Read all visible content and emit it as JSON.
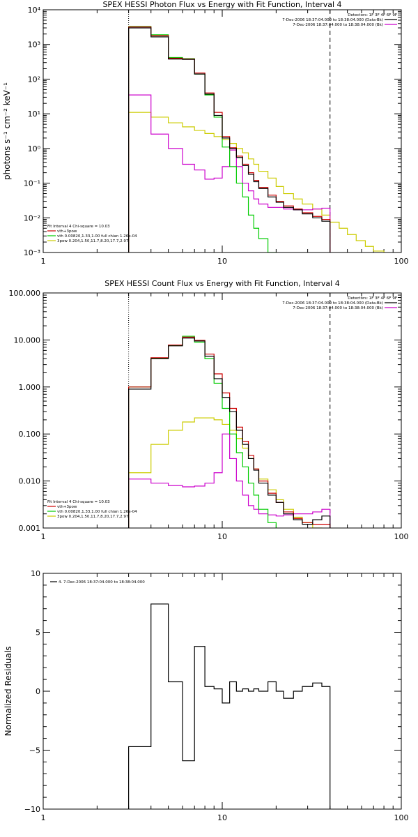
{
  "chart_data": [
    {
      "type": "line",
      "title": "SPEX HESSI Photon Flux vs Energy with Fit Function, Interval 4",
      "xlabel": "",
      "ylabel": "photons s⁻¹ cm⁻² keV⁻¹",
      "x_scale": "log",
      "y_scale": "log",
      "xlim": [
        1,
        100
      ],
      "ylim": [
        0.001,
        10000
      ],
      "x_tick_labels": [
        "1",
        "10",
        "100"
      ],
      "y_tick_labels": [
        "10⁻³",
        "10⁻²",
        "10⁻¹",
        "10⁰",
        "10¹",
        "10²",
        "10³",
        "10⁴"
      ],
      "x_ticks": [
        1,
        10,
        100
      ],
      "y_ticks": [
        0.001,
        0.01,
        0.1,
        1,
        10,
        100,
        1000,
        10000
      ],
      "vlines": [
        {
          "x": 3.0,
          "style": "dotted"
        },
        {
          "x": 40.0,
          "style": "dashed"
        }
      ],
      "legend_top_right": [
        "Detectors: 1F 3F 4F 6F 9F",
        "7-Dec-2006 18:37:04.000 to 18:38:04.000 (Data-Bk)",
        "7-Dec-2006 18:37:04.000 to 18:38:04.000 (Bk)"
      ],
      "legend_bottom_left": [
        "Fit Interval 4   Chi-square = 10.03",
        "vth+3pow",
        "vth 0.00820,1.33,1.00  full chian 1.26e-04",
        "3pow 0.204,1.50,11.7,8.20,17.7,2.97"
      ],
      "bin_edges": [
        3.0,
        4.0,
        5.0,
        6.0,
        7.0,
        8.0,
        9.0,
        10.0,
        11.0,
        12.0,
        13.0,
        14.0,
        15.0,
        16.0,
        18.0,
        20.0,
        22.0,
        25.0,
        28.0,
        32.0,
        36.0,
        40.0,
        45.0,
        50.0,
        56.0,
        63.0,
        70.0,
        80.0,
        90.0,
        100.0
      ],
      "series": [
        {
          "name": "7-Dec-2006 18:37:04.000 to 18:38:04.000 (Data-Bk)",
          "color": "#000000",
          "end_edge_index": 21,
          "values": [
            3000,
            1650,
            380,
            370,
            140,
            37,
            9.0,
            2.0,
            1.0,
            0.55,
            0.32,
            0.18,
            0.11,
            0.07,
            0.04,
            0.028,
            0.02,
            0.017,
            0.013,
            0.01,
            0.008
          ]
        },
        {
          "name": "vth+3pow",
          "color": "#cc0000",
          "end_edge_index": 21,
          "values": [
            3200,
            1800,
            400,
            380,
            150,
            40,
            11.0,
            2.2,
            1.05,
            0.6,
            0.35,
            0.2,
            0.12,
            0.075,
            0.045,
            0.03,
            0.022,
            0.018,
            0.014,
            0.011,
            0.009
          ]
        },
        {
          "name": "vth",
          "color": "#00cc00",
          "end_edge_index": 16,
          "values": [
            3300,
            1900,
            420,
            390,
            140,
            35,
            8.0,
            1.1,
            0.3,
            0.1,
            0.04,
            0.012,
            0.005,
            0.0025,
            0.001,
            0.0004
          ]
        },
        {
          "name": "3pow",
          "color": "#cccc00",
          "end_edge_index": 28,
          "values": [
            11,
            8.0,
            5.5,
            4.2,
            3.3,
            2.7,
            2.2,
            1.8,
            1.4,
            1.0,
            0.75,
            0.5,
            0.35,
            0.22,
            0.14,
            0.08,
            0.05,
            0.035,
            0.025,
            0.018,
            0.012,
            0.0075,
            0.005,
            0.0033,
            0.0022,
            0.0015,
            0.0011,
            0.0008
          ]
        },
        {
          "name": "7-Dec-2006 18:37:04.000 to 18:38:04.000 (Bk)",
          "color": "#cc00cc",
          "end_edge_index": 21,
          "values": [
            35,
            2.6,
            1.0,
            0.35,
            0.24,
            0.13,
            0.14,
            0.3,
            0.9,
            0.3,
            0.1,
            0.06,
            0.035,
            0.025,
            0.02,
            0.02,
            0.018,
            0.017,
            0.017,
            0.018,
            0.019
          ]
        }
      ]
    },
    {
      "type": "line",
      "title": "SPEX HESSI Count Flux vs Energy with Fit Function, Interval 4",
      "xlabel": "",
      "ylabel": "",
      "x_scale": "log",
      "y_scale": "log",
      "xlim": [
        1,
        100
      ],
      "ylim": [
        0.001,
        100
      ],
      "x_tick_labels": [
        "1",
        "10",
        "100"
      ],
      "y_tick_labels": [
        "0.001",
        "0.010",
        "0.100",
        "1.000",
        "10.000",
        "100.000"
      ],
      "x_ticks": [
        1,
        10,
        100
      ],
      "y_ticks": [
        0.001,
        0.01,
        0.1,
        1,
        10,
        100
      ],
      "vlines": [
        {
          "x": 3.0,
          "style": "dotted"
        },
        {
          "x": 40.0,
          "style": "dashed"
        }
      ],
      "legend_top_right": [
        "Detectors: 1F 3F 4F 6F 9F",
        "7-Dec-2006 18:37:04.000 to 18:38:04.000 (Data-Bk)",
        "7-Dec-2006 18:37:04.000 to 18:38:04.000 (Bk)"
      ],
      "legend_bottom_left": [
        "Fit Interval 4   Chi-square = 10.03",
        "vth+3pow",
        "vth 0.00820,1.33,1.00  full chian 1.26e-04",
        "3pow 0.204,1.50,11.7,8.20,17.7,2.97"
      ],
      "bin_edges": [
        3.0,
        4.0,
        5.0,
        6.0,
        7.0,
        8.0,
        9.0,
        10.0,
        11.0,
        12.0,
        13.0,
        14.0,
        15.0,
        16.0,
        18.0,
        20.0,
        22.0,
        25.0,
        28.0,
        32.0,
        36.0,
        40.0
      ],
      "series": [
        {
          "name": "7-Dec-2006 18:37:04.000 to 18:38:04.000 (Data-Bk)",
          "color": "#000000",
          "end_edge_index": 21,
          "values": [
            0.9,
            4.0,
            7.5,
            11.0,
            9.5,
            4.5,
            1.5,
            0.6,
            0.3,
            0.12,
            0.06,
            0.03,
            0.017,
            0.009,
            0.005,
            0.0035,
            0.002,
            0.0015,
            0.0012,
            0.0015,
            0.0018
          ]
        },
        {
          "name": "vth+3pow",
          "color": "#cc0000",
          "end_edge_index": 21,
          "values": [
            1.0,
            4.2,
            7.8,
            11.5,
            9.8,
            5.0,
            1.9,
            0.75,
            0.35,
            0.14,
            0.07,
            0.035,
            0.018,
            0.01,
            0.0055,
            0.0035,
            0.0022,
            0.0016,
            0.0013,
            0.0012,
            0.0012
          ]
        },
        {
          "name": "vth",
          "color": "#00cc00",
          "end_edge_index": 16,
          "values": [
            1.0,
            4.1,
            7.7,
            12.0,
            9.0,
            4.0,
            1.2,
            0.35,
            0.1,
            0.04,
            0.02,
            0.009,
            0.005,
            0.0025,
            0.0013,
            0.0008
          ]
        },
        {
          "name": "3pow",
          "color": "#cccc00",
          "end_edge_index": 21,
          "values": [
            0.015,
            0.06,
            0.12,
            0.18,
            0.22,
            0.22,
            0.2,
            0.16,
            0.12,
            0.08,
            0.05,
            0.03,
            0.018,
            0.011,
            0.0065,
            0.004,
            0.0025,
            0.0017,
            0.0013,
            0.001,
            0.0008
          ]
        },
        {
          "name": "7-Dec-2006 18:37:04.000 to 18:38:04.000 (Bk)",
          "color": "#cc00cc",
          "end_edge_index": 21,
          "values": [
            0.011,
            0.009,
            0.008,
            0.0075,
            0.0078,
            0.009,
            0.015,
            0.1,
            0.03,
            0.01,
            0.005,
            0.003,
            0.0025,
            0.002,
            0.0019,
            0.0018,
            0.0019,
            0.002,
            0.002,
            0.0022,
            0.0025
          ]
        }
      ]
    },
    {
      "type": "line",
      "title": "",
      "xlabel": "",
      "ylabel": "Normalized Residuals",
      "x_scale": "log",
      "y_scale": "linear",
      "xlim": [
        1,
        100
      ],
      "ylim": [
        -10,
        10
      ],
      "x_tick_labels": [
        "1",
        "10",
        "100"
      ],
      "y_tick_labels": [
        "−10",
        "−5",
        "0",
        "5",
        "10"
      ],
      "x_ticks": [
        1,
        10,
        100
      ],
      "y_ticks": [
        -10,
        -5,
        0,
        5,
        10
      ],
      "legend_top_left": [
        "4.  7-Dec-2006 18:37:04.000 to 18:38:04.000"
      ],
      "bin_edges": [
        3.0,
        4.0,
        5.0,
        6.0,
        7.0,
        8.0,
        9.0,
        10.0,
        11.0,
        12.0,
        13.0,
        14.0,
        15.0,
        16.0,
        18.0,
        20.0,
        22.0,
        25.0,
        28.0,
        32.0,
        36.0,
        40.0
      ],
      "series": [
        {
          "name": "4.  7-Dec-2006 18:37:04.000 to 18:38:04.000",
          "color": "#000000",
          "end_edge_index": 21,
          "values": [
            -4.7,
            7.4,
            0.8,
            -5.9,
            3.8,
            0.4,
            0.2,
            -1.0,
            0.8,
            0.0,
            0.2,
            0.0,
            0.2,
            0.0,
            0.8,
            0.0,
            -0.6,
            0.0,
            0.4,
            0.7,
            0.4
          ]
        }
      ]
    }
  ]
}
